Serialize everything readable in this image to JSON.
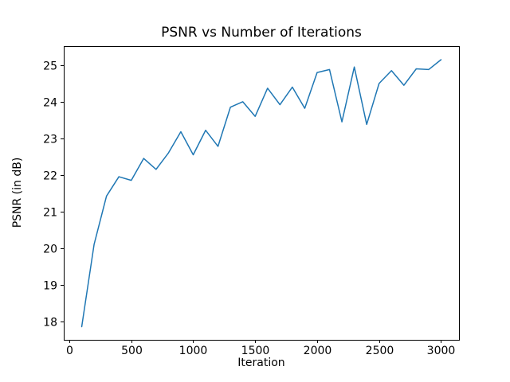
{
  "figure": {
    "background": "#ffffff",
    "text_color": "#000000",
    "spine_color": "#000000"
  },
  "chart_data": {
    "type": "line",
    "title": "PSNR vs Number of Iterations",
    "xlabel": "Iteration",
    "ylabel": "PSNR (in dB)",
    "series": [
      {
        "name": "PSNR",
        "color": "#1f77b4",
        "line_width": 1.5,
        "x": [
          100,
          200,
          300,
          400,
          500,
          600,
          700,
          800,
          900,
          1000,
          1100,
          1200,
          1300,
          1400,
          1500,
          1600,
          1700,
          1800,
          1900,
          2000,
          2100,
          2200,
          2300,
          2400,
          2500,
          2600,
          2700,
          2800,
          2900,
          3000
        ],
        "y": [
          17.85,
          20.1,
          21.42,
          21.95,
          21.85,
          22.45,
          22.15,
          22.6,
          23.18,
          22.55,
          23.22,
          22.78,
          23.85,
          24.0,
          23.6,
          24.37,
          23.92,
          24.4,
          23.82,
          24.8,
          24.88,
          23.45,
          24.95,
          23.38,
          24.5,
          24.85,
          24.45,
          24.9,
          24.88,
          25.15
        ]
      }
    ],
    "xlim": [
      -45,
      3145
    ],
    "ylim": [
      17.49,
      25.52
    ],
    "xticks": [
      0,
      500,
      1000,
      1500,
      2000,
      2500,
      3000
    ],
    "yticks": [
      18,
      19,
      20,
      21,
      22,
      23,
      24,
      25
    ],
    "grid": false,
    "legend_position": "none"
  }
}
